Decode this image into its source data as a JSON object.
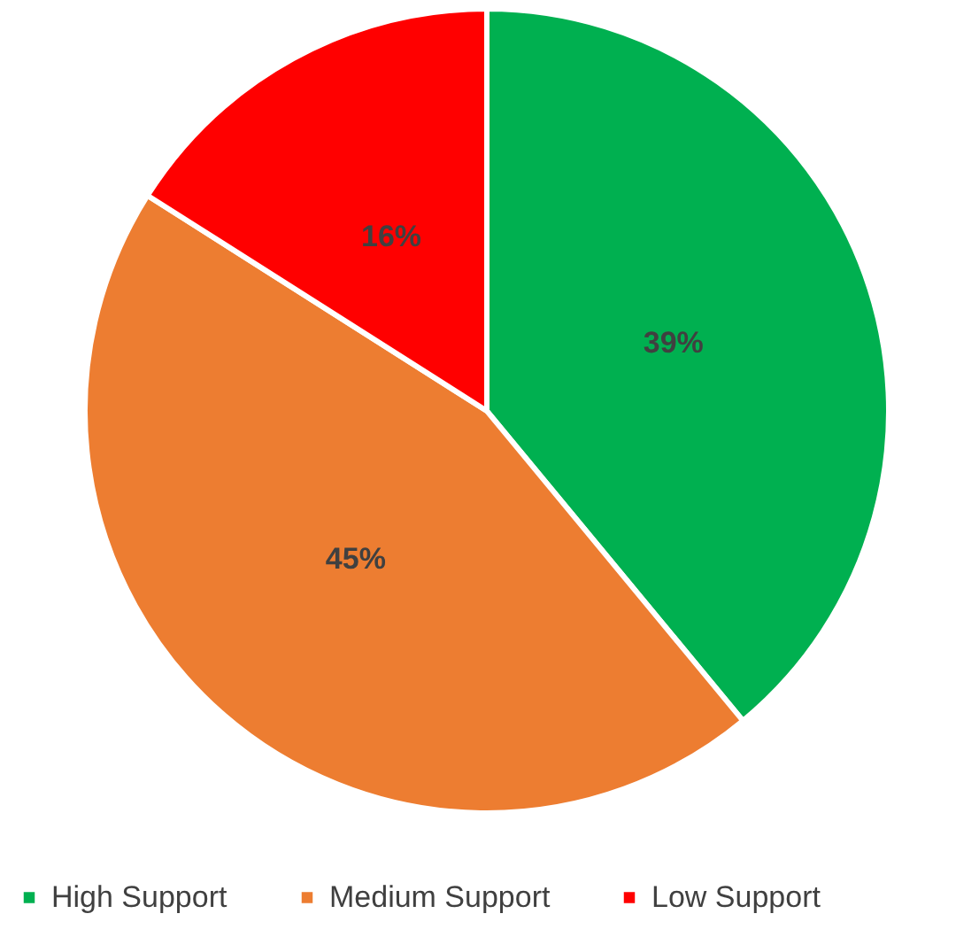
{
  "chart_data": {
    "type": "pie",
    "categories": [
      "High Support",
      "Medium Support",
      "Low Support"
    ],
    "values": [
      39,
      45,
      16
    ],
    "colors": [
      "#00b050",
      "#ed7d31",
      "#ff0000"
    ],
    "value_labels": [
      "39%",
      "45%",
      "16%"
    ],
    "legend": "bottom"
  }
}
